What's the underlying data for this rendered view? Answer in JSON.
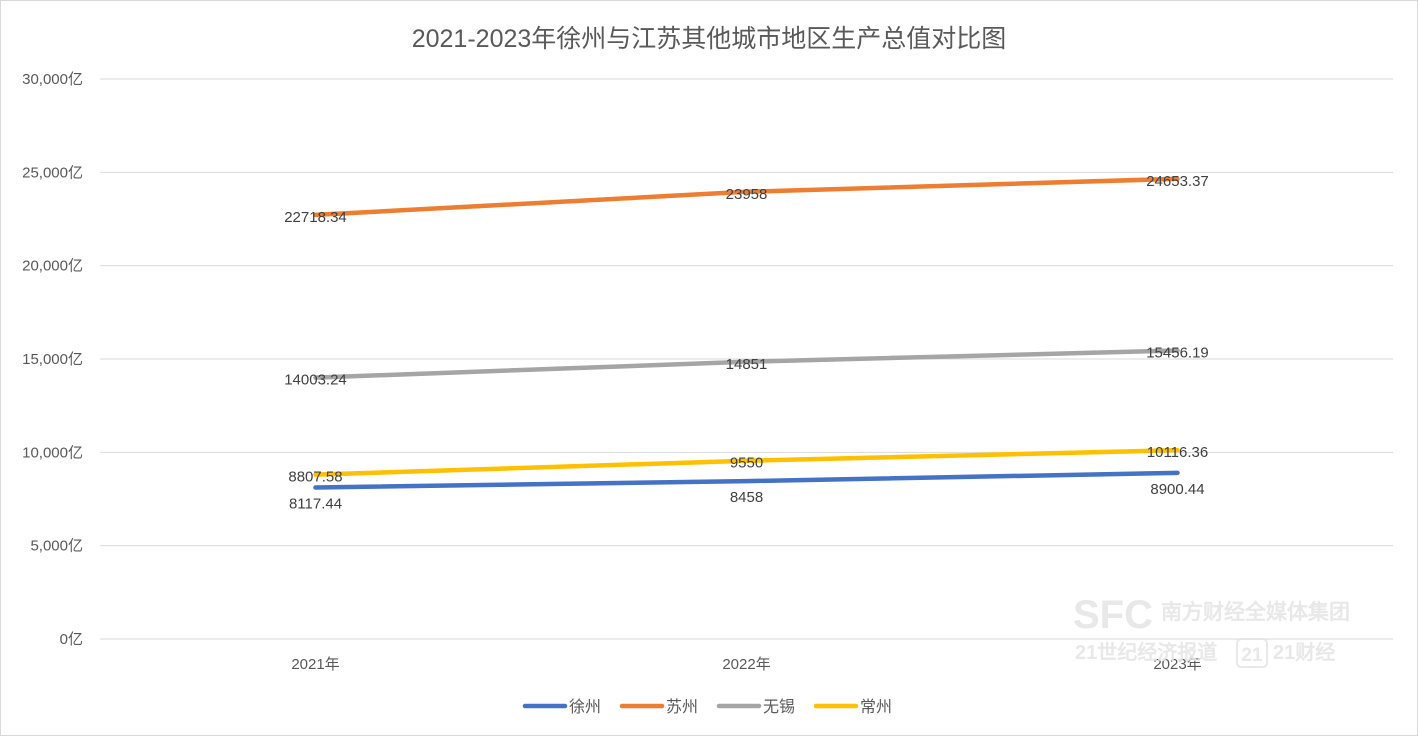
{
  "chart_data": {
    "type": "line",
    "title": "2021-2023年徐州与江苏其他城市地区生产总值对比图",
    "categories": [
      "2021年",
      "2022年",
      "2023年"
    ],
    "ylim": [
      0,
      30000
    ],
    "yticks": [
      0,
      5000,
      10000,
      15000,
      20000,
      25000,
      30000
    ],
    "ytick_labels": [
      "0亿",
      "5,000亿",
      "10,000亿",
      "15,000亿",
      "20,000亿",
      "25,000亿",
      "30,000亿"
    ],
    "grid": true,
    "legend_position": "bottom",
    "series": [
      {
        "name": "徐州",
        "color": "#4472C4",
        "values": [
          8117.44,
          8458,
          8900.44
        ],
        "labels": [
          "8117.44",
          "8458",
          "8900.44"
        ],
        "label_pos": "below"
      },
      {
        "name": "苏州",
        "color": "#ED7D31",
        "values": [
          22718.34,
          23958,
          24653.37
        ],
        "labels": [
          "22718.34",
          "23958",
          "24653.37"
        ],
        "label_pos": "center"
      },
      {
        "name": "无锡",
        "color": "#A5A5A5",
        "values": [
          14003.24,
          14851,
          15456.19
        ],
        "labels": [
          "14003.24",
          "14851",
          "15456.19"
        ],
        "label_pos": "center"
      },
      {
        "name": "常州",
        "color": "#FFC000",
        "values": [
          8807.58,
          9550,
          10116.36
        ],
        "labels": [
          "8807.58",
          "9550",
          "10116.36"
        ],
        "label_pos": "center"
      }
    ]
  },
  "watermark": {
    "logo": "SFC",
    "line1": "南方财经全媒体集团",
    "line2a": "21世纪经济报道",
    "badge": "21",
    "line2b": "21财经"
  }
}
